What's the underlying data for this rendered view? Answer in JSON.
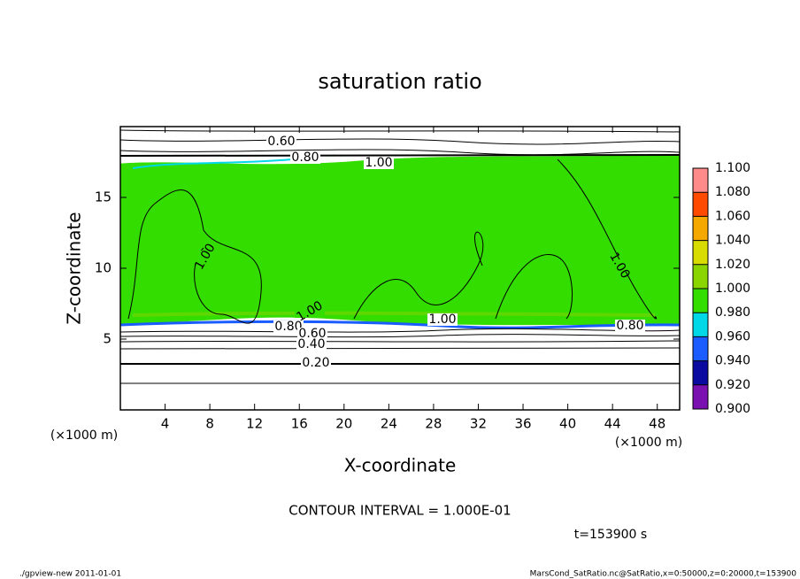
{
  "chart_data": {
    "type": "contour",
    "title": "saturation ratio",
    "x_label": "X-coordinate",
    "y_label": "Z-coordinate",
    "x_unit": "(×1000 m)",
    "xlim": [
      0,
      50
    ],
    "xticks": [
      4,
      8,
      12,
      16,
      20,
      24,
      28,
      32,
      36,
      40,
      44,
      48
    ],
    "ylim": [
      0,
      20
    ],
    "yticks": [
      5,
      10,
      15
    ],
    "colorbar": {
      "ticks": [
        {
          "value": 0.9,
          "label": "0.900"
        },
        {
          "value": 0.92,
          "label": "0.920"
        },
        {
          "value": 0.94,
          "label": "0.940"
        },
        {
          "value": 0.96,
          "label": "0.960"
        },
        {
          "value": 0.98,
          "label": "0.980"
        },
        {
          "value": 1.0,
          "label": "1.000"
        },
        {
          "value": 1.02,
          "label": "1.020"
        },
        {
          "value": 1.04,
          "label": "1.040"
        },
        {
          "value": 1.06,
          "label": "1.060"
        },
        {
          "value": 1.08,
          "label": "1.080"
        },
        {
          "value": 1.1,
          "label": "1.100"
        }
      ],
      "colors": [
        "#7a10b0",
        "#0a0aa0",
        "#1a5cff",
        "#00d8e8",
        "#33dd00",
        "#8ad400",
        "#d8dc00",
        "#f5a800",
        "#ff4a00",
        "#ff8a8a"
      ]
    },
    "contour_labels": [
      {
        "value": 0.6,
        "label": "0.60"
      },
      {
        "value": 0.8,
        "label": "0.80"
      },
      {
        "value": 1.0,
        "label": "1.00"
      },
      {
        "value": 1.0,
        "label": "1.00"
      },
      {
        "value": 1.0,
        "label": "1.00"
      },
      {
        "value": 1.0,
        "label": "1.00"
      },
      {
        "value": 0.8,
        "label": "0.80"
      },
      {
        "value": 1.0,
        "label": "1.00"
      },
      {
        "value": 0.8,
        "label": "0.80"
      },
      {
        "value": 0.6,
        "label": "0.60"
      },
      {
        "value": 0.4,
        "label": "0.40"
      },
      {
        "value": 0.2,
        "label": "0.20"
      }
    ],
    "contour_interval": "CONTOUR INTERVAL = 1.000E-01",
    "time_label": "t=153900 s",
    "footer_left": "./gpview-new  2011-01-01",
    "footer_right": "MarsCond_SatRatio.nc@SatRatio,x=0:50000,z=0:20000,t=153900"
  }
}
